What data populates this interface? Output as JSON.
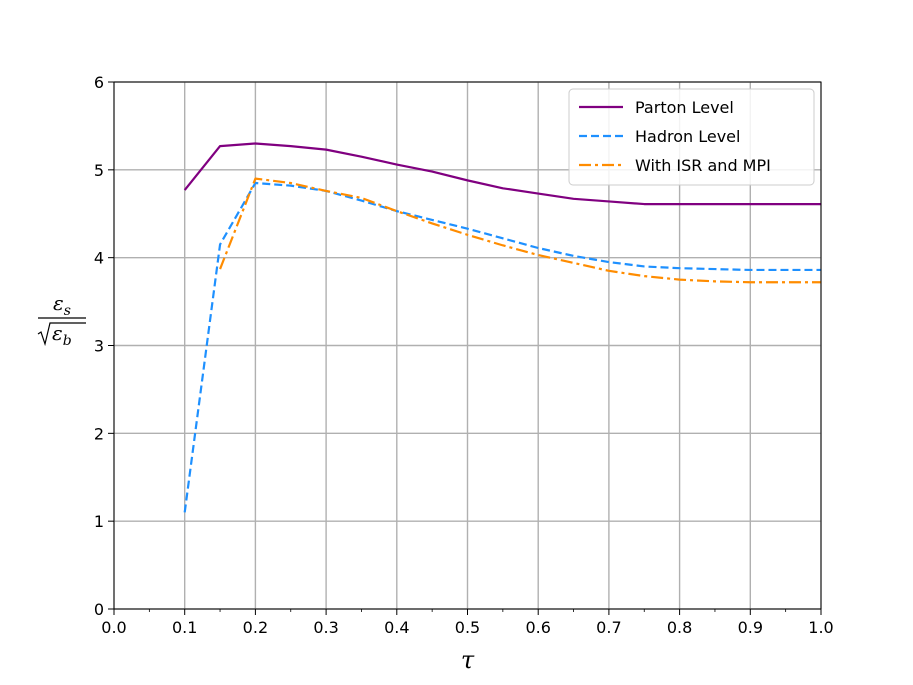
{
  "chart_data": {
    "type": "line",
    "xlabel": "τ",
    "ylabel": {
      "numerator": "ε",
      "numerator_sub": "s",
      "denominator": "ε",
      "denominator_sub": "b"
    },
    "xlim": [
      0.0,
      1.0
    ],
    "ylim": [
      0,
      6
    ],
    "x_ticks": [
      "0.0",
      "0.1",
      "0.2",
      "0.3",
      "0.4",
      "0.5",
      "0.6",
      "0.7",
      "0.8",
      "0.9",
      "1.0"
    ],
    "y_ticks": [
      "0",
      "1",
      "2",
      "3",
      "4",
      "5",
      "6"
    ],
    "grid": true,
    "legend": "top-right",
    "series": [
      {
        "name": "Parton Level",
        "color": "#800080",
        "dash": "solid",
        "x": [
          0.1,
          0.15,
          0.2,
          0.25,
          0.3,
          0.35,
          0.4,
          0.45,
          0.5,
          0.55,
          0.6,
          0.65,
          0.7,
          0.75,
          0.8,
          0.85,
          0.9,
          0.95,
          1.0
        ],
        "y": [
          4.77,
          5.27,
          5.3,
          5.27,
          5.23,
          5.15,
          5.06,
          4.98,
          4.88,
          4.79,
          4.73,
          4.67,
          4.64,
          4.61,
          4.61,
          4.61,
          4.61,
          4.61,
          4.61
        ]
      },
      {
        "name": "Hadron Level",
        "color": "#1e90ff",
        "dash": "dashed",
        "x": [
          0.1,
          0.15,
          0.2,
          0.25,
          0.3,
          0.35,
          0.4,
          0.45,
          0.5,
          0.55,
          0.6,
          0.65,
          0.7,
          0.75,
          0.8,
          0.85,
          0.9,
          0.95,
          1.0
        ],
        "y": [
          1.1,
          4.15,
          4.85,
          4.82,
          4.76,
          4.65,
          4.53,
          4.43,
          4.33,
          4.22,
          4.11,
          4.02,
          3.95,
          3.9,
          3.88,
          3.87,
          3.86,
          3.86,
          3.86
        ]
      },
      {
        "name": "With ISR and MPI",
        "color": "#ff8c00",
        "dash": "dashdot",
        "x": [
          0.15,
          0.2,
          0.25,
          0.3,
          0.35,
          0.4,
          0.45,
          0.5,
          0.55,
          0.6,
          0.65,
          0.7,
          0.75,
          0.8,
          0.85,
          0.9,
          0.95,
          1.0
        ],
        "y": [
          3.87,
          4.9,
          4.85,
          4.76,
          4.68,
          4.53,
          4.39,
          4.26,
          4.14,
          4.03,
          3.94,
          3.85,
          3.79,
          3.75,
          3.73,
          3.72,
          3.72,
          3.72
        ]
      }
    ]
  }
}
